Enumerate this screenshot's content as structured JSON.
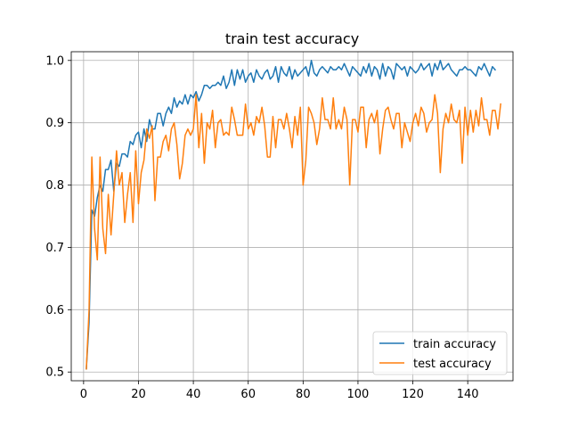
{
  "chart_data": {
    "type": "line",
    "title": "train test accuracy",
    "xlabel": "",
    "ylabel": "",
    "xlim": [
      -4.5,
      156.5
    ],
    "ylim": [
      0.486,
      1.014
    ],
    "xticks": [
      0,
      20,
      40,
      60,
      80,
      100,
      120,
      140
    ],
    "yticks": [
      0.5,
      0.6,
      0.7,
      0.8,
      0.9,
      1.0
    ],
    "ytick_labels": [
      "0.5",
      "0.6",
      "0.7",
      "0.8",
      "0.9",
      "1.0"
    ],
    "grid": true,
    "legend_position": "lower-right",
    "x_start": 1,
    "series": [
      {
        "name": "train accuracy",
        "color": "#1f77b4",
        "values": [
          0.505,
          0.58,
          0.76,
          0.75,
          0.78,
          0.8,
          0.79,
          0.825,
          0.825,
          0.84,
          0.79,
          0.835,
          0.83,
          0.85,
          0.85,
          0.845,
          0.87,
          0.865,
          0.88,
          0.885,
          0.86,
          0.89,
          0.87,
          0.905,
          0.89,
          0.89,
          0.915,
          0.915,
          0.895,
          0.915,
          0.925,
          0.915,
          0.94,
          0.925,
          0.935,
          0.93,
          0.945,
          0.93,
          0.945,
          0.94,
          0.95,
          0.935,
          0.945,
          0.96,
          0.96,
          0.955,
          0.96,
          0.96,
          0.965,
          0.96,
          0.975,
          0.955,
          0.965,
          0.985,
          0.96,
          0.985,
          0.97,
          0.985,
          0.965,
          0.975,
          0.98,
          0.965,
          0.985,
          0.975,
          0.97,
          0.98,
          0.985,
          0.97,
          0.975,
          0.99,
          0.965,
          0.99,
          0.98,
          0.975,
          0.99,
          0.97,
          0.985,
          0.975,
          0.98,
          0.985,
          0.99,
          0.975,
          1.0,
          0.98,
          0.975,
          0.985,
          0.99,
          0.985,
          0.98,
          0.99,
          0.985,
          0.985,
          0.99,
          0.985,
          0.995,
          0.985,
          0.975,
          0.99,
          0.985,
          0.98,
          0.975,
          0.99,
          0.98,
          0.995,
          0.975,
          0.99,
          0.985,
          0.97,
          0.995,
          0.975,
          0.99,
          0.985,
          0.97,
          0.995,
          0.99,
          0.985,
          0.99,
          0.975,
          0.99,
          0.985,
          0.98,
          0.985,
          0.995,
          0.985,
          0.99,
          0.995,
          0.975,
          0.995,
          0.985,
          1.0,
          0.985,
          0.99,
          0.995,
          0.985,
          0.98,
          0.975,
          0.985,
          0.985,
          0.99,
          0.985,
          0.985,
          0.98,
          0.975,
          0.99,
          0.985,
          0.995,
          0.985,
          0.975,
          0.99,
          0.985
        ]
      },
      {
        "name": "test accuracy",
        "color": "#ff7f0e",
        "values": [
          0.505,
          0.6,
          0.845,
          0.73,
          0.68,
          0.845,
          0.73,
          0.69,
          0.785,
          0.72,
          0.785,
          0.855,
          0.8,
          0.82,
          0.74,
          0.785,
          0.82,
          0.74,
          0.855,
          0.77,
          0.82,
          0.84,
          0.89,
          0.875,
          0.895,
          0.775,
          0.845,
          0.845,
          0.87,
          0.88,
          0.855,
          0.89,
          0.9,
          0.865,
          0.81,
          0.835,
          0.88,
          0.89,
          0.88,
          0.89,
          0.945,
          0.86,
          0.915,
          0.835,
          0.9,
          0.89,
          0.92,
          0.86,
          0.9,
          0.905,
          0.88,
          0.885,
          0.88,
          0.925,
          0.905,
          0.88,
          0.88,
          0.88,
          0.93,
          0.89,
          0.9,
          0.88,
          0.91,
          0.9,
          0.925,
          0.895,
          0.845,
          0.845,
          0.91,
          0.86,
          0.905,
          0.905,
          0.89,
          0.915,
          0.89,
          0.86,
          0.91,
          0.88,
          0.925,
          0.8,
          0.84,
          0.925,
          0.915,
          0.9,
          0.865,
          0.89,
          0.94,
          0.905,
          0.905,
          0.89,
          0.94,
          0.89,
          0.905,
          0.89,
          0.925,
          0.905,
          0.8,
          0.905,
          0.905,
          0.885,
          0.925,
          0.925,
          0.86,
          0.905,
          0.915,
          0.9,
          0.92,
          0.85,
          0.89,
          0.92,
          0.925,
          0.905,
          0.89,
          0.915,
          0.915,
          0.86,
          0.9,
          0.885,
          0.87,
          0.9,
          0.915,
          0.895,
          0.925,
          0.915,
          0.885,
          0.9,
          0.905,
          0.945,
          0.915,
          0.82,
          0.89,
          0.915,
          0.9,
          0.93,
          0.905,
          0.9,
          0.92,
          0.835,
          0.925,
          0.88,
          0.92,
          0.885,
          0.92,
          0.895,
          0.94,
          0.905,
          0.905,
          0.88,
          0.92,
          0.92,
          0.89,
          0.93
        ]
      }
    ]
  }
}
